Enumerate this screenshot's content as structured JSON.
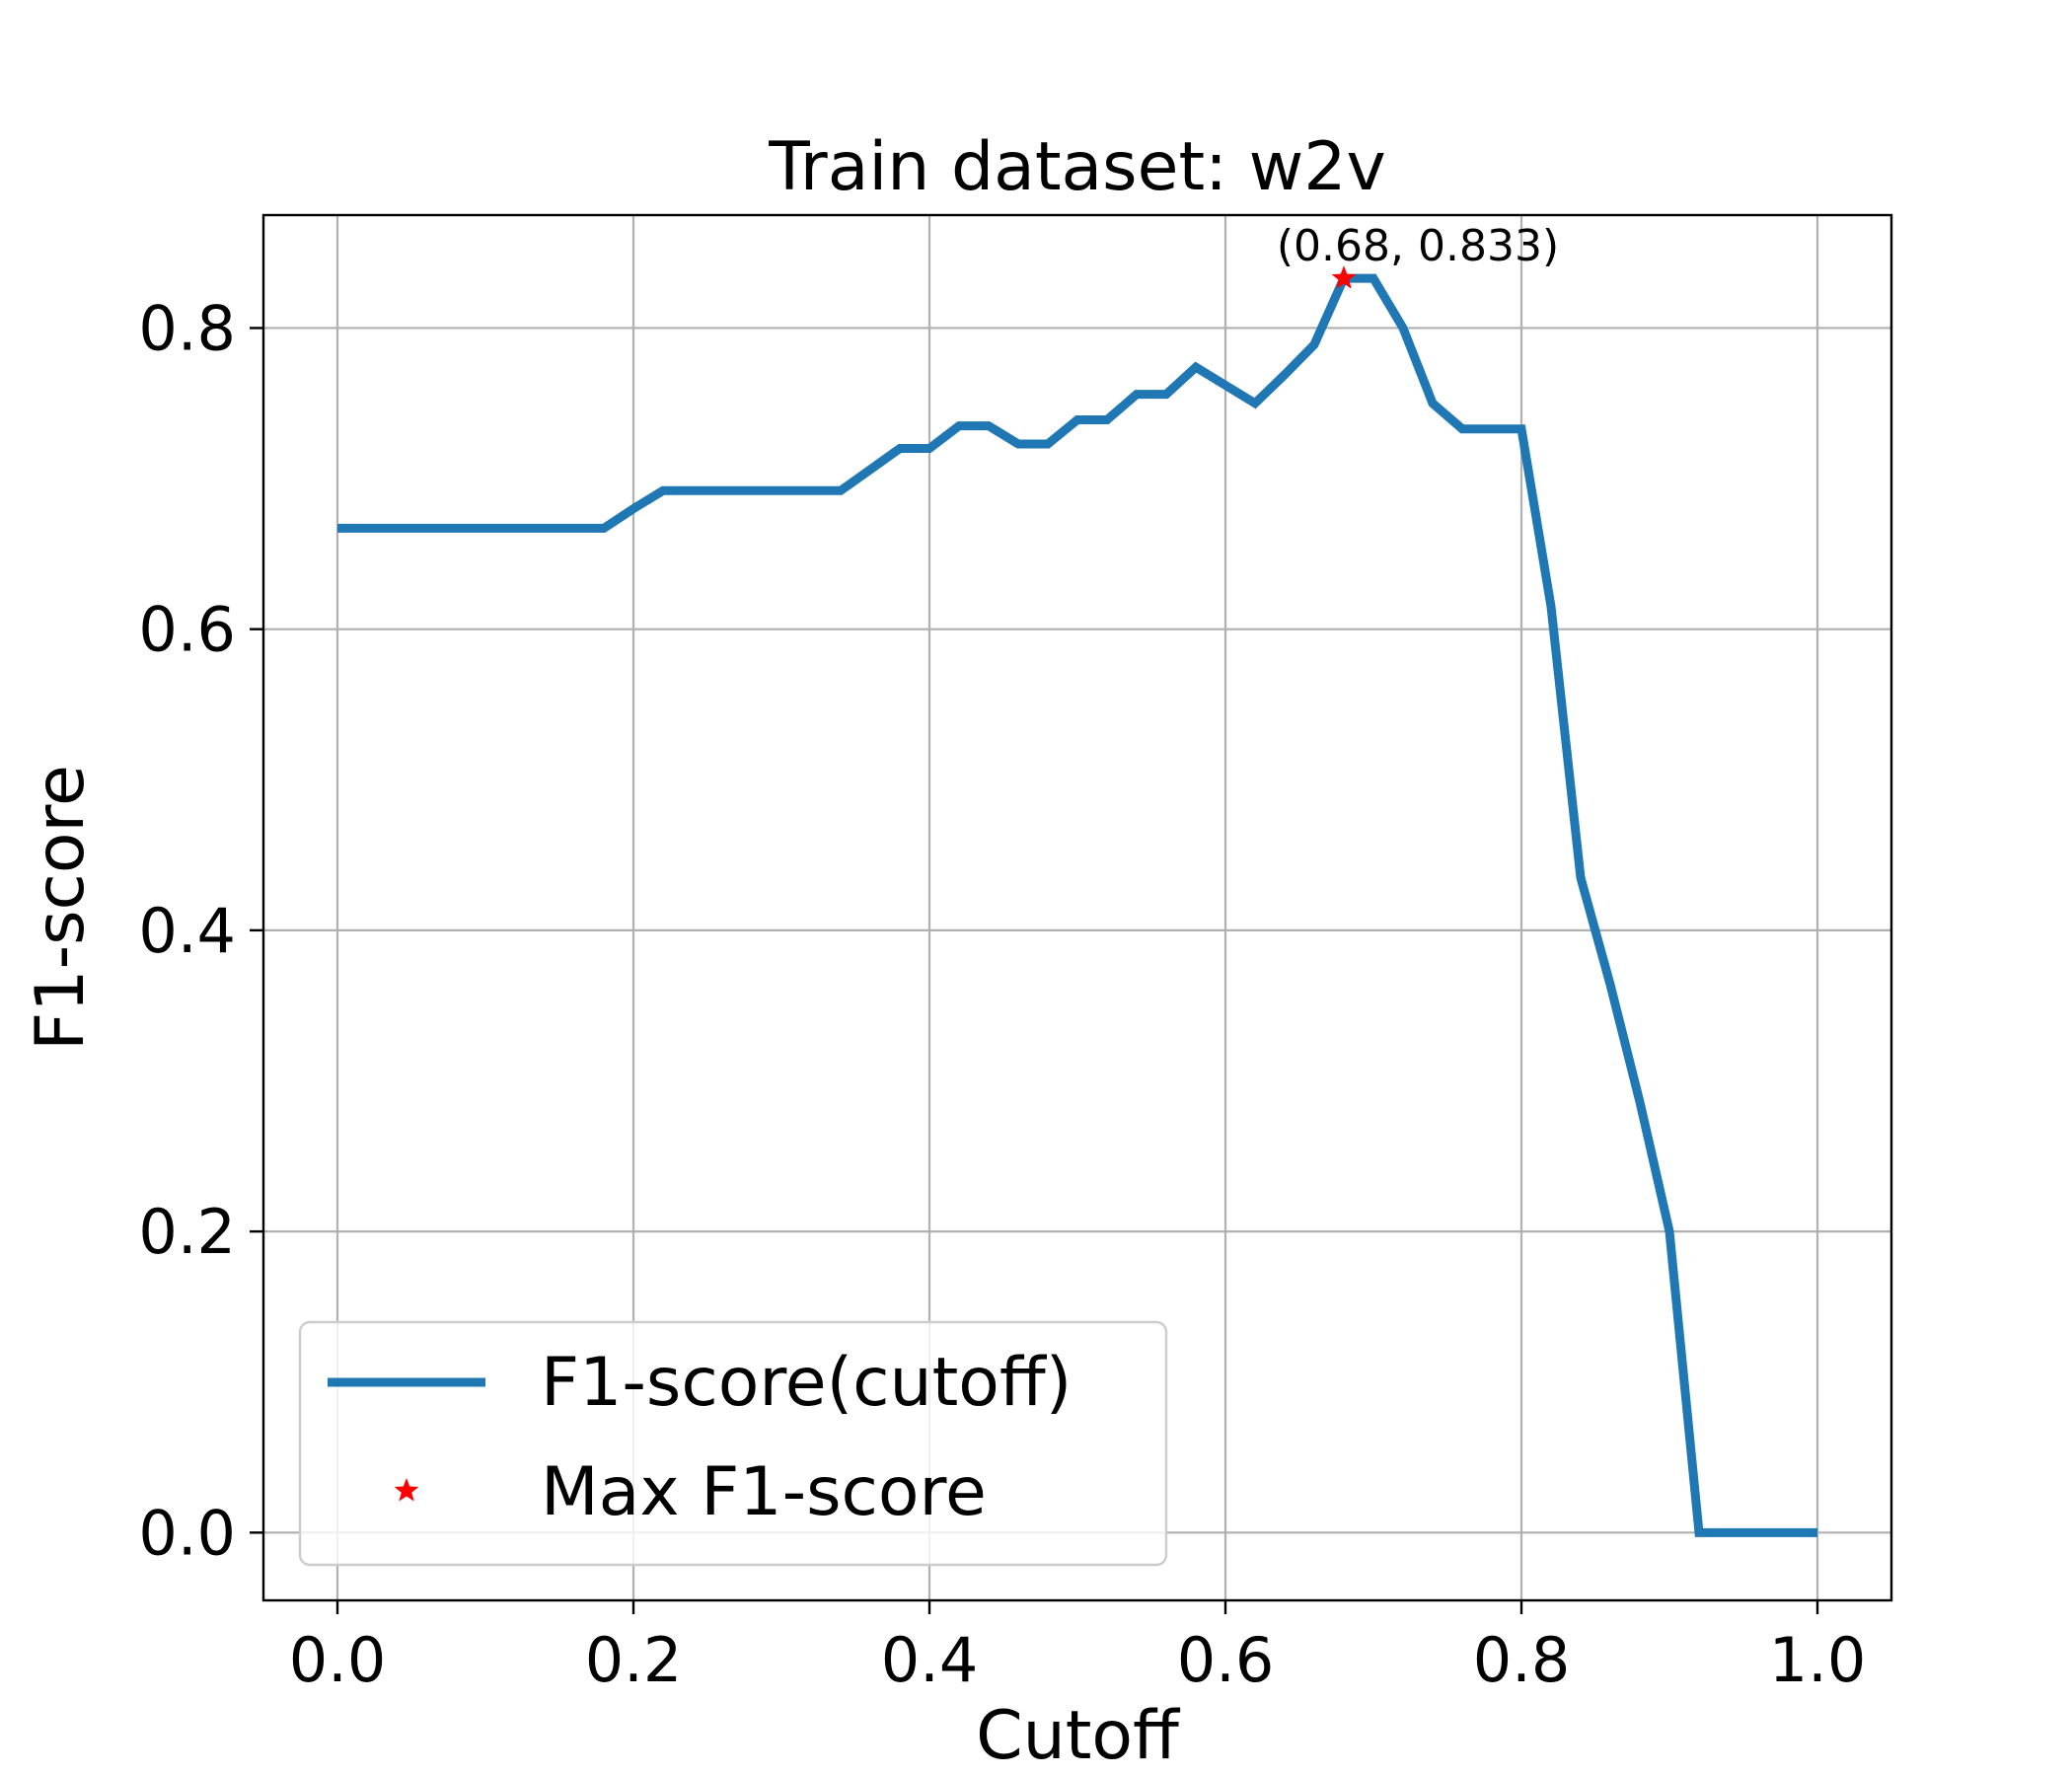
{
  "chart_data": {
    "type": "line",
    "title": "Train dataset: w2v",
    "xlabel": "Cutoff",
    "ylabel": "F1-score",
    "xlim": [
      -0.05,
      1.05
    ],
    "ylim": [
      -0.045,
      0.875
    ],
    "xticks": [
      0.0,
      0.2,
      0.4,
      0.6,
      0.8,
      1.0
    ],
    "xtick_labels": [
      "0.0",
      "0.2",
      "0.4",
      "0.6",
      "0.8",
      "1.0"
    ],
    "yticks": [
      0.0,
      0.2,
      0.4,
      0.6,
      0.8
    ],
    "ytick_labels": [
      "0.0",
      "0.2",
      "0.4",
      "0.6",
      "0.8"
    ],
    "grid": true,
    "legend_position": "lower-left",
    "series": [
      {
        "name": "F1-score(cutoff)",
        "color": "#1f77b4",
        "x": [
          0.0,
          0.02,
          0.04,
          0.06,
          0.08,
          0.1,
          0.12,
          0.14,
          0.16,
          0.18,
          0.2,
          0.22,
          0.24,
          0.26,
          0.28,
          0.3,
          0.32,
          0.34,
          0.36,
          0.38,
          0.4,
          0.42,
          0.44,
          0.46,
          0.48,
          0.5,
          0.52,
          0.54,
          0.56,
          0.58,
          0.6,
          0.62,
          0.64,
          0.66,
          0.68,
          0.7,
          0.72,
          0.74,
          0.76,
          0.78,
          0.8,
          0.82,
          0.84,
          0.86,
          0.88,
          0.9,
          0.92,
          0.94,
          0.96,
          0.98,
          1.0
        ],
        "y": [
          0.667,
          0.667,
          0.667,
          0.667,
          0.667,
          0.667,
          0.667,
          0.667,
          0.667,
          0.667,
          0.68,
          0.692,
          0.692,
          0.692,
          0.692,
          0.692,
          0.692,
          0.692,
          0.706,
          0.72,
          0.72,
          0.735,
          0.735,
          0.723,
          0.723,
          0.739,
          0.739,
          0.756,
          0.756,
          0.774,
          0.762,
          0.75,
          0.769,
          0.789,
          0.833,
          0.833,
          0.8,
          0.75,
          0.733,
          0.733,
          0.733,
          0.615,
          0.435,
          0.364,
          0.286,
          0.2,
          0.0,
          0.0,
          0.0,
          0.0,
          0.0
        ]
      },
      {
        "name": "Max F1-score",
        "color": "#ff0000",
        "marker": "star",
        "x": [
          0.68
        ],
        "y": [
          0.833
        ]
      }
    ],
    "annotations": [
      {
        "text": "(0.68, 0.833)",
        "x": 0.68,
        "y": 0.833
      }
    ]
  }
}
